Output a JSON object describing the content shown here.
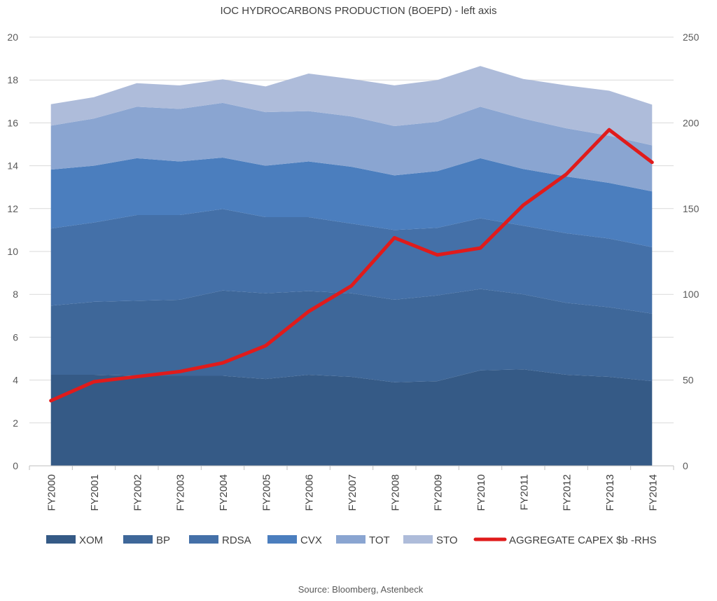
{
  "chart_data": {
    "type": "area",
    "stacked": true,
    "title": "IOC HYDROCARBONS PRODUCTION (BOEPD) - left axis",
    "source": "Source: Bloomberg, Astenbeck",
    "categories": [
      "FY2000",
      "FY2001",
      "FY2002",
      "FY2003",
      "FY2004",
      "FY2005",
      "FY2006",
      "FY2007",
      "FY2008",
      "FY2009",
      "FY2010",
      "FY2011",
      "FY2012",
      "FY2013",
      "FY2014"
    ],
    "ylim": [
      0,
      20
    ],
    "yticks": [
      "0",
      "2",
      "4",
      "6",
      "8",
      "10",
      "12",
      "14",
      "16",
      "18",
      "20"
    ],
    "y2lim": [
      0,
      250
    ],
    "y2ticks": [
      "0",
      "50",
      "100",
      "150",
      "200",
      "250"
    ],
    "grid": true,
    "legend_position": "bottom",
    "series": [
      {
        "name": "XOM",
        "color": "#355a86",
        "values": [
          4.25,
          4.25,
          4.2,
          4.2,
          4.2,
          4.05,
          4.25,
          4.15,
          3.9,
          3.95,
          4.45,
          4.5,
          4.25,
          4.15,
          3.95
        ]
      },
      {
        "name": "BP",
        "color": "#3e6799",
        "values": [
          3.22,
          3.4,
          3.5,
          3.55,
          3.98,
          4.0,
          3.9,
          3.9,
          3.85,
          4.0,
          3.8,
          3.5,
          3.35,
          3.25,
          3.15
        ]
      },
      {
        "name": "RDSA",
        "color": "#4470a8",
        "values": [
          3.6,
          3.7,
          4.0,
          3.95,
          3.8,
          3.55,
          3.45,
          3.25,
          3.25,
          3.15,
          3.3,
          3.2,
          3.25,
          3.2,
          3.1
        ]
      },
      {
        "name": "CVX",
        "color": "#4b7ebe",
        "values": [
          2.75,
          2.65,
          2.65,
          2.5,
          2.4,
          2.4,
          2.6,
          2.65,
          2.55,
          2.65,
          2.8,
          2.65,
          2.65,
          2.6,
          2.6
        ]
      },
      {
        "name": "TOT",
        "color": "#8aa5d1",
        "values": [
          2.05,
          2.2,
          2.4,
          2.45,
          2.55,
          2.5,
          2.35,
          2.35,
          2.3,
          2.3,
          2.4,
          2.35,
          2.25,
          2.2,
          2.15
        ]
      },
      {
        "name": "STO",
        "color": "#aebcda",
        "values": [
          1.0,
          1.0,
          1.1,
          1.1,
          1.1,
          1.2,
          1.75,
          1.75,
          1.9,
          1.95,
          1.9,
          1.85,
          2.0,
          2.1,
          1.9
        ]
      }
    ],
    "line_series": {
      "name": "AGGREGATE CAPEX $b -RHS",
      "color": "#e01b1b",
      "axis": "right",
      "values": [
        38,
        49,
        52,
        55,
        60,
        70,
        90,
        105,
        133,
        123,
        127,
        152,
        170,
        196,
        177
      ]
    }
  }
}
